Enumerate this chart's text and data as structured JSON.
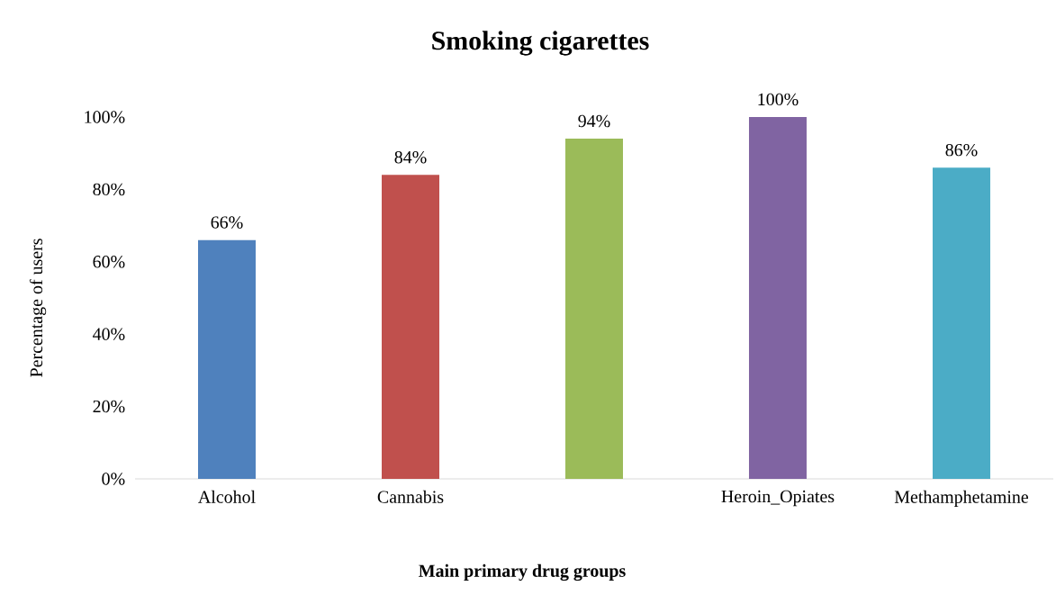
{
  "chart_data": {
    "type": "bar",
    "title": "Smoking cigarettes",
    "xlabel": "Main primary drug groups",
    "ylabel": "Percentage of users",
    "categories": [
      "Alcohol",
      "Cannabis",
      null,
      "Heroin_Opiates",
      "Methamphetamine"
    ],
    "values": [
      66,
      84,
      94,
      100,
      86
    ],
    "colors": [
      "#4f81bd",
      "#c0504d",
      "#9bbb59",
      "#8064a2",
      "#4bacc6"
    ],
    "value_labels": [
      "66%",
      "84%",
      "94%",
      "100%",
      "86%"
    ],
    "ylim": [
      0,
      100
    ],
    "yticks": [
      {
        "value": 0,
        "label": "0%"
      },
      {
        "value": 20,
        "label": "20%"
      },
      {
        "value": 40,
        "label": "40%"
      },
      {
        "value": 60,
        "label": "60%"
      },
      {
        "value": 80,
        "label": "80%"
      },
      {
        "value": 100,
        "label": "100%"
      }
    ]
  }
}
